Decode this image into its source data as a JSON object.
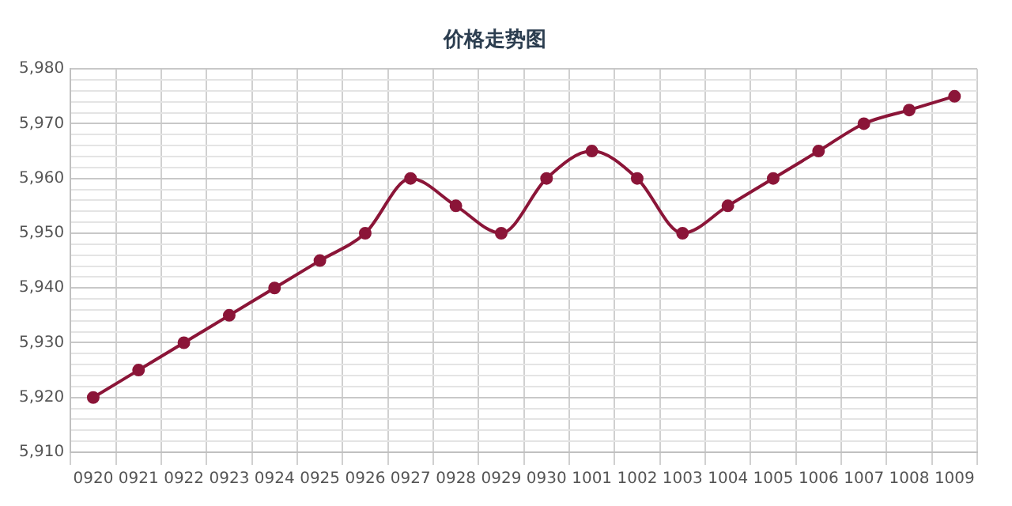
{
  "chart_data": {
    "type": "line",
    "title": "价格走势图",
    "categories": [
      "0920",
      "0921",
      "0922",
      "0923",
      "0924",
      "0925",
      "0926",
      "0927",
      "0928",
      "0929",
      "0930",
      "1001",
      "1002",
      "1003",
      "1004",
      "1005",
      "1006",
      "1007",
      "1008",
      "1009"
    ],
    "series": [
      {
        "color": "#8b1538",
        "values": [
          5920,
          5925,
          5930,
          5935,
          5940,
          5945,
          5950,
          5960,
          5955,
          5950,
          5960,
          5965,
          5960,
          5950,
          5955,
          5960,
          5965,
          5970,
          5972.5,
          5975
        ]
      }
    ],
    "ylim": [
      5910,
      5980
    ],
    "yticks": [
      {
        "value": 5910,
        "label": "5,910"
      },
      {
        "value": 5912,
        "label": null
      },
      {
        "value": 5914,
        "label": null
      },
      {
        "value": 5916,
        "label": null
      },
      {
        "value": 5918,
        "label": null
      },
      {
        "value": 5920,
        "label": "5,920"
      },
      {
        "value": 5922,
        "label": null
      },
      {
        "value": 5924,
        "label": null
      },
      {
        "value": 5926,
        "label": null
      },
      {
        "value": 5928,
        "label": null
      },
      {
        "value": 5930,
        "label": "5,930"
      },
      {
        "value": 5932,
        "label": null
      },
      {
        "value": 5934,
        "label": null
      },
      {
        "value": 5936,
        "label": null
      },
      {
        "value": 5938,
        "label": null
      },
      {
        "value": 5940,
        "label": "5,940"
      },
      {
        "value": 5942,
        "label": null
      },
      {
        "value": 5944,
        "label": null
      },
      {
        "value": 5946,
        "label": null
      },
      {
        "value": 5948,
        "label": null
      },
      {
        "value": 5950,
        "label": "5,950"
      },
      {
        "value": 5952,
        "label": null
      },
      {
        "value": 5954,
        "label": null
      },
      {
        "value": 5956,
        "label": null
      },
      {
        "value": 5958,
        "label": null
      },
      {
        "value": 5960,
        "label": "5,960"
      },
      {
        "value": 5962,
        "label": null
      },
      {
        "value": 5964,
        "label": null
      },
      {
        "value": 5966,
        "label": null
      },
      {
        "value": 5968,
        "label": null
      },
      {
        "value": 5970,
        "label": "5,970"
      },
      {
        "value": 5972,
        "label": null
      },
      {
        "value": 5974,
        "label": null
      },
      {
        "value": 5976,
        "label": null
      },
      {
        "value": 5978,
        "label": null
      },
      {
        "value": 5980,
        "label": "5,980"
      }
    ],
    "grid": true,
    "legend": false,
    "marker": "circle",
    "line_style": "solid"
  }
}
